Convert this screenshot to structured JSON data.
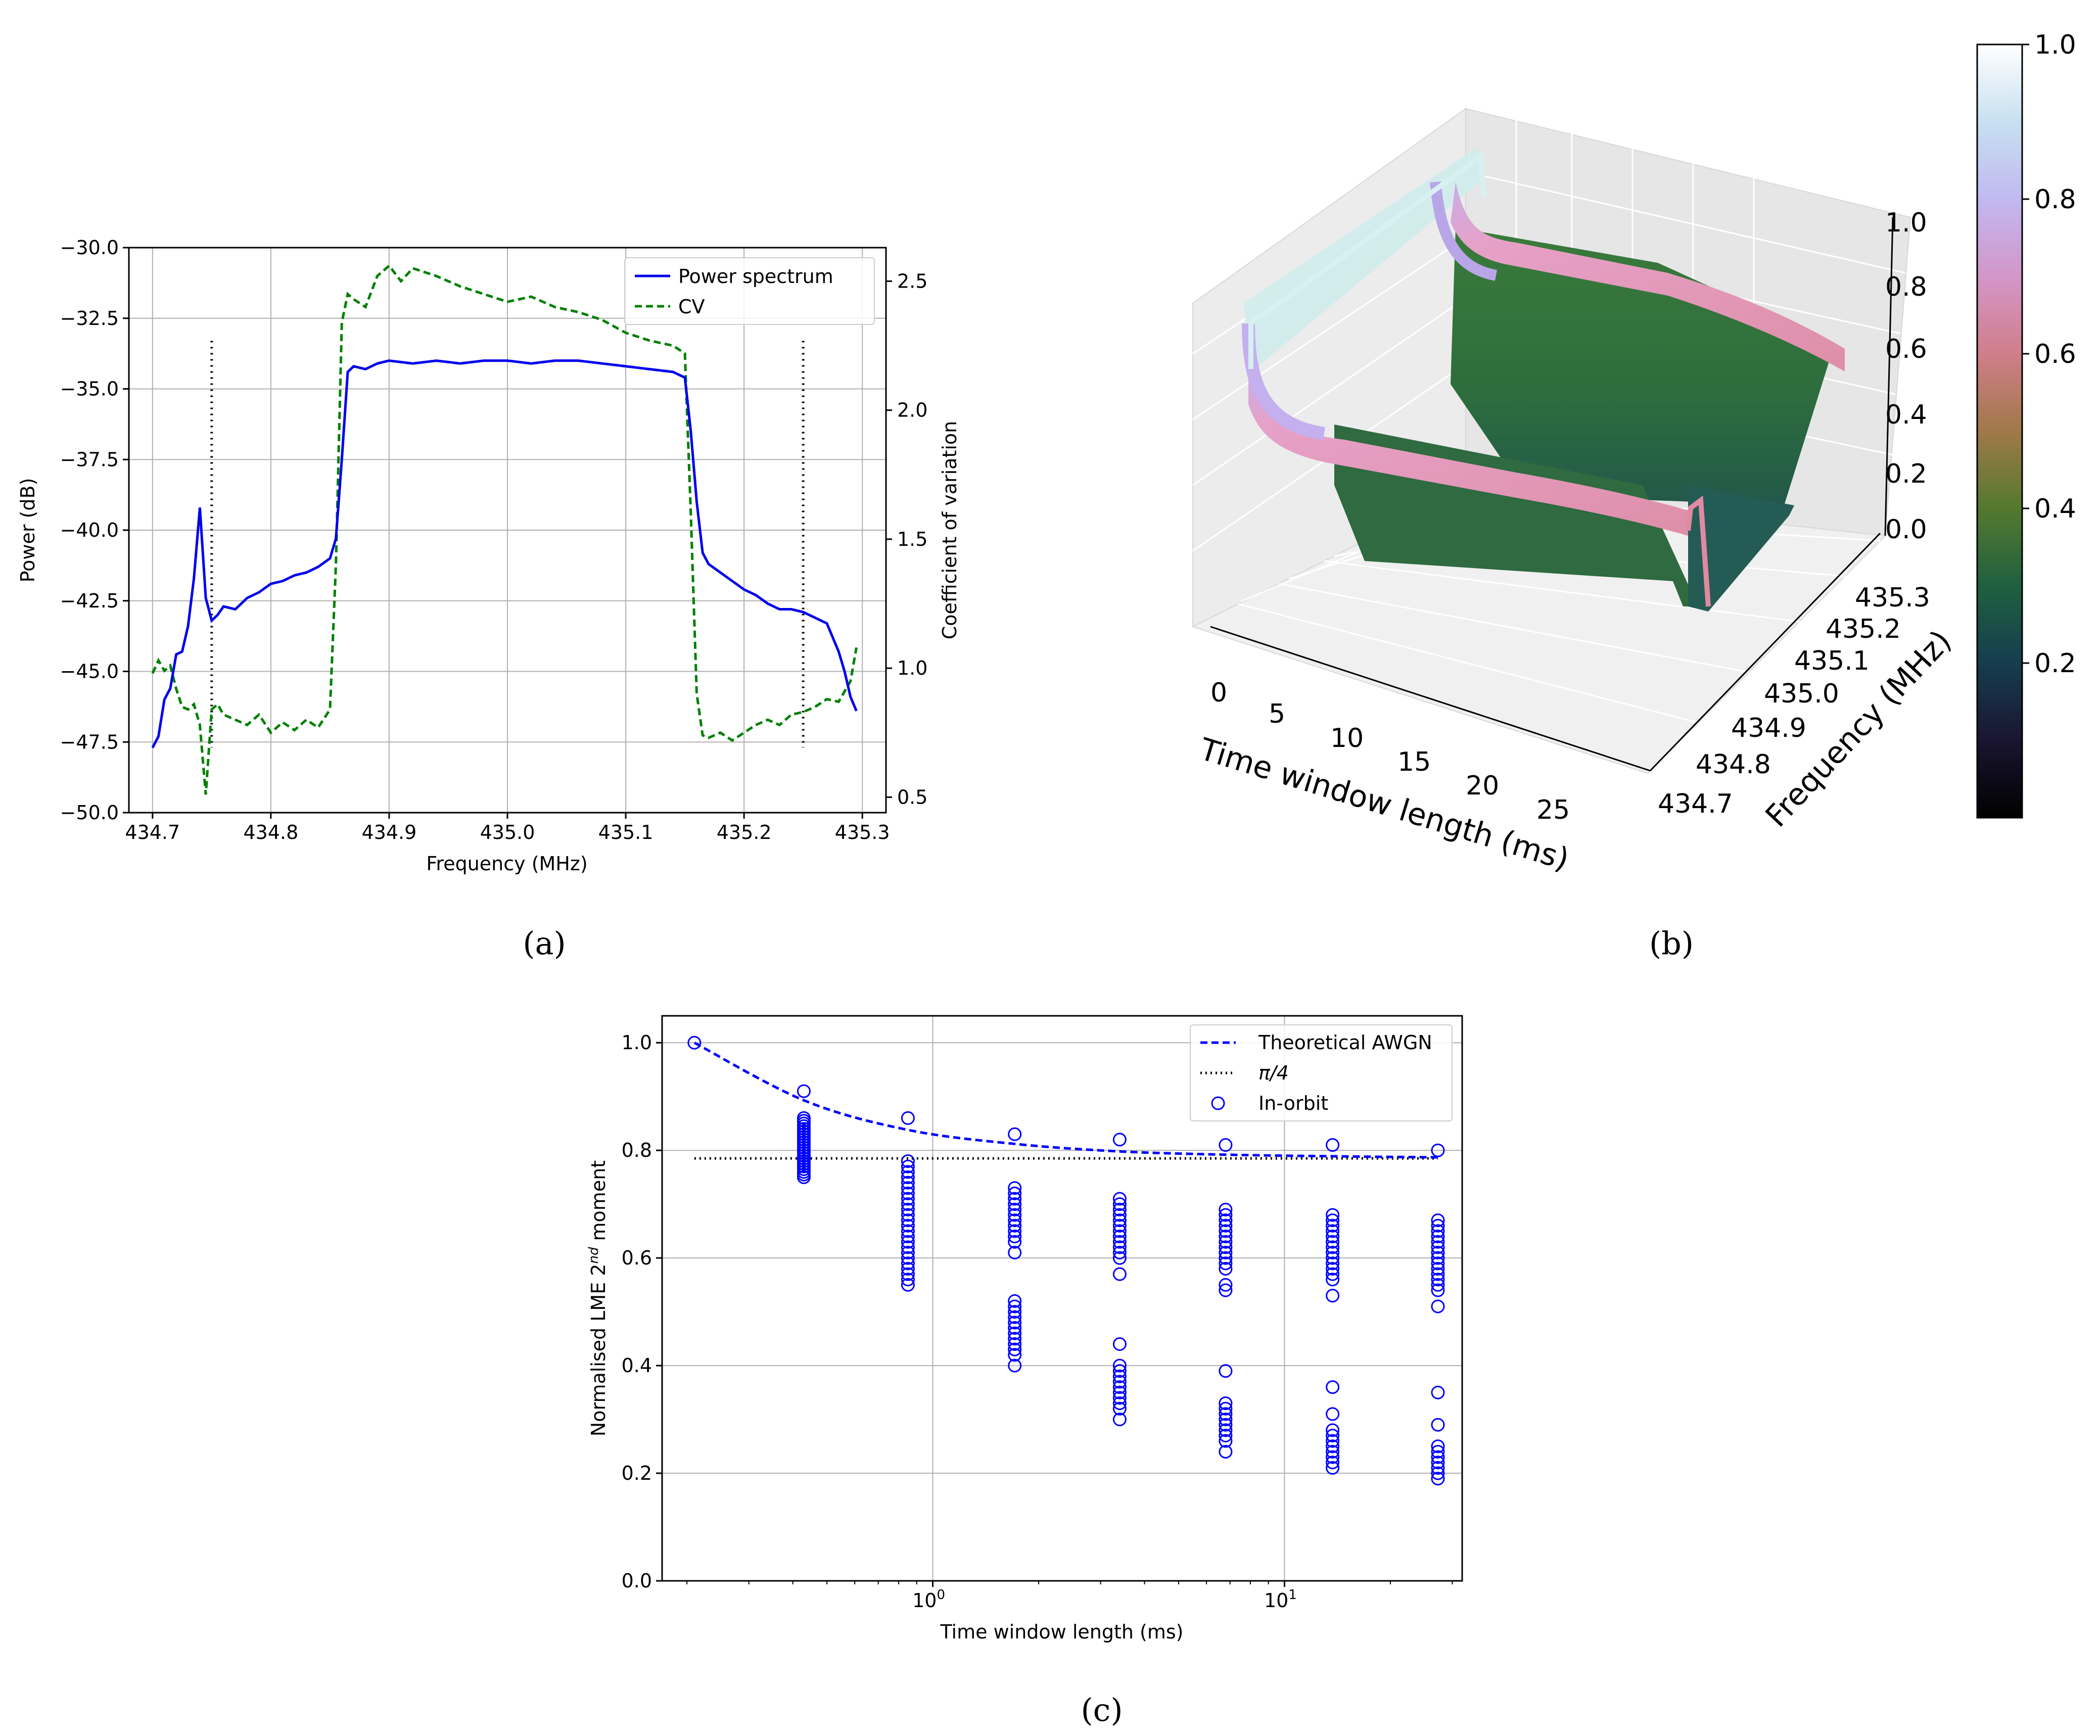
{
  "figure": {
    "captions": {
      "a": "(a)",
      "b": "(b)",
      "c": "(c)"
    }
  },
  "colors": {
    "power": "#0000ee",
    "cv": "#008000",
    "awgn": "#0000ff",
    "pi4": "#000000",
    "scatter": "#0000ff",
    "grid": "#b0b0b0"
  },
  "chart_data": [
    {
      "id": "a",
      "type": "line",
      "xlabel": "Frequency (MHz)",
      "ylabel": "Power (dB)",
      "y2label": "Coefficient of variation",
      "xlim": [
        434.68,
        435.32
      ],
      "ylim": [
        -50,
        -30
      ],
      "y2lim": [
        0.44,
        2.63
      ],
      "xticks": [
        "434.7",
        "434.8",
        "434.9",
        "435.0",
        "435.1",
        "435.2",
        "435.3"
      ],
      "yticks": [
        "−30.0",
        "−32.5",
        "−35.0",
        "−37.5",
        "−40.0",
        "−42.5",
        "−45.0",
        "−47.5",
        "−50.0"
      ],
      "y2ticks": [
        "2.5",
        "2.0",
        "1.5",
        "1.0",
        "0.5"
      ],
      "legend": {
        "location": "upper right",
        "entries": [
          "Power spectrum",
          "CV"
        ]
      },
      "series": [
        {
          "name": "Power spectrum",
          "style": "solid",
          "x": [
            434.7,
            434.705,
            434.71,
            434.715,
            434.72,
            434.725,
            434.73,
            434.735,
            434.74,
            434.745,
            434.75,
            434.755,
            434.76,
            434.77,
            434.78,
            434.79,
            434.8,
            434.81,
            434.82,
            434.83,
            434.84,
            434.85,
            434.855,
            434.86,
            434.865,
            434.87,
            434.88,
            434.89,
            434.9,
            434.92,
            434.94,
            434.96,
            434.98,
            435.0,
            435.02,
            435.04,
            435.06,
            435.08,
            435.1,
            435.12,
            435.14,
            435.15,
            435.155,
            435.16,
            435.165,
            435.17,
            435.18,
            435.19,
            435.2,
            435.21,
            435.22,
            435.23,
            435.24,
            435.25,
            435.26,
            435.27,
            435.28,
            435.285,
            435.29,
            435.295
          ],
          "y": [
            -47.7,
            -47.3,
            -46.0,
            -45.6,
            -44.4,
            -44.3,
            -43.4,
            -41.7,
            -39.2,
            -42.4,
            -43.2,
            -43.0,
            -42.7,
            -42.8,
            -42.4,
            -42.2,
            -41.9,
            -41.8,
            -41.6,
            -41.5,
            -41.3,
            -41.0,
            -40.3,
            -37.5,
            -34.4,
            -34.2,
            -34.3,
            -34.1,
            -34.0,
            -34.1,
            -34.0,
            -34.1,
            -34.0,
            -34.0,
            -34.1,
            -34.0,
            -34.0,
            -34.1,
            -34.2,
            -34.3,
            -34.4,
            -34.6,
            -36.5,
            -39.0,
            -40.8,
            -41.2,
            -41.5,
            -41.8,
            -42.1,
            -42.3,
            -42.6,
            -42.8,
            -42.8,
            -42.9,
            -43.1,
            -43.3,
            -44.3,
            -45.0,
            -45.9,
            -46.4
          ]
        },
        {
          "name": "CV",
          "style": "dashed",
          "x": [
            434.7,
            434.705,
            434.71,
            434.715,
            434.72,
            434.725,
            434.73,
            434.735,
            434.74,
            434.745,
            434.75,
            434.755,
            434.76,
            434.77,
            434.78,
            434.79,
            434.8,
            434.81,
            434.82,
            434.83,
            434.84,
            434.85,
            434.855,
            434.86,
            434.865,
            434.87,
            434.88,
            434.89,
            434.9,
            434.91,
            434.92,
            434.94,
            434.96,
            434.98,
            435.0,
            435.02,
            435.04,
            435.06,
            435.08,
            435.1,
            435.12,
            435.14,
            435.15,
            435.155,
            435.16,
            435.165,
            435.17,
            435.18,
            435.19,
            435.2,
            435.21,
            435.22,
            435.23,
            435.24,
            435.25,
            435.26,
            435.27,
            435.28,
            435.29,
            435.295
          ],
          "y": [
            0.98,
            1.03,
            0.99,
            1.01,
            0.92,
            0.85,
            0.84,
            0.86,
            0.78,
            0.51,
            0.84,
            0.86,
            0.82,
            0.8,
            0.78,
            0.82,
            0.75,
            0.79,
            0.76,
            0.8,
            0.77,
            0.84,
            1.4,
            2.34,
            2.45,
            2.43,
            2.4,
            2.52,
            2.56,
            2.5,
            2.55,
            2.52,
            2.48,
            2.45,
            2.42,
            2.44,
            2.4,
            2.38,
            2.35,
            2.3,
            2.27,
            2.25,
            2.22,
            1.6,
            0.9,
            0.74,
            0.73,
            0.75,
            0.72,
            0.75,
            0.78,
            0.8,
            0.78,
            0.82,
            0.83,
            0.85,
            0.88,
            0.87,
            0.95,
            1.08
          ]
        }
      ],
      "markers": [
        {
          "x": 434.75,
          "y_from": -47.7,
          "y_to": -33.3
        },
        {
          "x": 435.25,
          "y_from": -47.7,
          "y_to": -33.3
        }
      ]
    },
    {
      "id": "b",
      "type": "surface",
      "xlabel": "Time window length (ms)",
      "ylabel": "Frequency (MHz)",
      "zlabel": "",
      "xticks": [
        "0",
        "5",
        "10",
        "15",
        "20",
        "25"
      ],
      "yticks": [
        "434.7",
        "434.8",
        "434.9",
        "435.0",
        "435.1",
        "435.2",
        "435.3"
      ],
      "zticks": [
        "0.0",
        "0.2",
        "0.4",
        "0.6",
        "0.8",
        "1.0"
      ],
      "colorbar": {
        "ticks": [
          "0.2",
          "0.4",
          "0.6",
          "0.8",
          "1.0"
        ],
        "range": [
          0,
          1
        ],
        "colormap": "cubehelix"
      }
    },
    {
      "id": "c",
      "type": "scatter",
      "xlabel": "Time window length (ms)",
      "ylabel": "Normalised LME 2nd moment",
      "ylabel_base": "Normalised LME 2",
      "ylabel_sup": "nd",
      "ylabel_tail": " moment",
      "xscale": "log",
      "xlim": [
        0.17,
        32
      ],
      "ylim": [
        0,
        1.05
      ],
      "xticks": [
        {
          "base": "10",
          "exp": "0",
          "value": 1
        },
        {
          "base": "10",
          "exp": "1",
          "value": 10
        }
      ],
      "yticks": [
        "0.0",
        "0.2",
        "0.4",
        "0.6",
        "0.8",
        "1.0"
      ],
      "legend": {
        "location": "upper right",
        "entries": [
          "Theoretical AWGN",
          "π/4",
          "In-orbit"
        ]
      },
      "awgn": {
        "x": [
          0.21,
          0.43,
          0.85,
          1.71,
          3.4,
          6.8,
          13.7,
          27.3
        ],
        "y": [
          1.0,
          0.893,
          0.838,
          0.812,
          0.798,
          0.792,
          0.789,
          0.787
        ]
      },
      "pi4": {
        "x": [
          0.21,
          27.3
        ],
        "y": [
          0.785,
          0.785
        ]
      },
      "in_orbit": [
        {
          "x": 0.21,
          "y": [
            1.0
          ]
        },
        {
          "x": 0.43,
          "y": [
            0.91,
            0.86,
            0.855,
            0.85,
            0.845,
            0.84,
            0.835,
            0.83,
            0.825,
            0.82,
            0.815,
            0.81,
            0.805,
            0.8,
            0.795,
            0.79,
            0.785,
            0.78,
            0.775,
            0.77,
            0.765,
            0.76,
            0.755,
            0.75
          ]
        },
        {
          "x": 0.85,
          "y": [
            0.86,
            0.78,
            0.77,
            0.76,
            0.75,
            0.74,
            0.73,
            0.72,
            0.71,
            0.7,
            0.69,
            0.68,
            0.67,
            0.66,
            0.65,
            0.64,
            0.63,
            0.62,
            0.61,
            0.6,
            0.59,
            0.58,
            0.57,
            0.56,
            0.55
          ]
        },
        {
          "x": 1.71,
          "y": [
            0.83,
            0.73,
            0.72,
            0.71,
            0.7,
            0.69,
            0.68,
            0.67,
            0.66,
            0.65,
            0.64,
            0.63,
            0.61,
            0.52,
            0.51,
            0.5,
            0.49,
            0.48,
            0.47,
            0.46,
            0.45,
            0.44,
            0.43,
            0.42,
            0.4
          ]
        },
        {
          "x": 3.4,
          "y": [
            0.82,
            0.71,
            0.7,
            0.69,
            0.68,
            0.67,
            0.66,
            0.65,
            0.64,
            0.63,
            0.62,
            0.61,
            0.6,
            0.57,
            0.44,
            0.4,
            0.39,
            0.38,
            0.37,
            0.36,
            0.35,
            0.34,
            0.33,
            0.32,
            0.3
          ]
        },
        {
          "x": 6.8,
          "y": [
            0.81,
            0.69,
            0.68,
            0.67,
            0.66,
            0.65,
            0.64,
            0.63,
            0.62,
            0.61,
            0.6,
            0.59,
            0.58,
            0.55,
            0.54,
            0.39,
            0.33,
            0.32,
            0.31,
            0.3,
            0.29,
            0.28,
            0.27,
            0.26,
            0.24
          ]
        },
        {
          "x": 13.7,
          "y": [
            0.81,
            0.68,
            0.67,
            0.66,
            0.65,
            0.64,
            0.63,
            0.62,
            0.61,
            0.6,
            0.59,
            0.58,
            0.57,
            0.56,
            0.53,
            0.36,
            0.31,
            0.28,
            0.27,
            0.26,
            0.25,
            0.24,
            0.23,
            0.22,
            0.21
          ]
        },
        {
          "x": 27.3,
          "y": [
            0.8,
            0.67,
            0.66,
            0.65,
            0.64,
            0.63,
            0.62,
            0.61,
            0.6,
            0.59,
            0.58,
            0.57,
            0.56,
            0.55,
            0.54,
            0.51,
            0.35,
            0.29,
            0.25,
            0.24,
            0.23,
            0.22,
            0.21,
            0.2,
            0.19
          ]
        }
      ]
    }
  ]
}
